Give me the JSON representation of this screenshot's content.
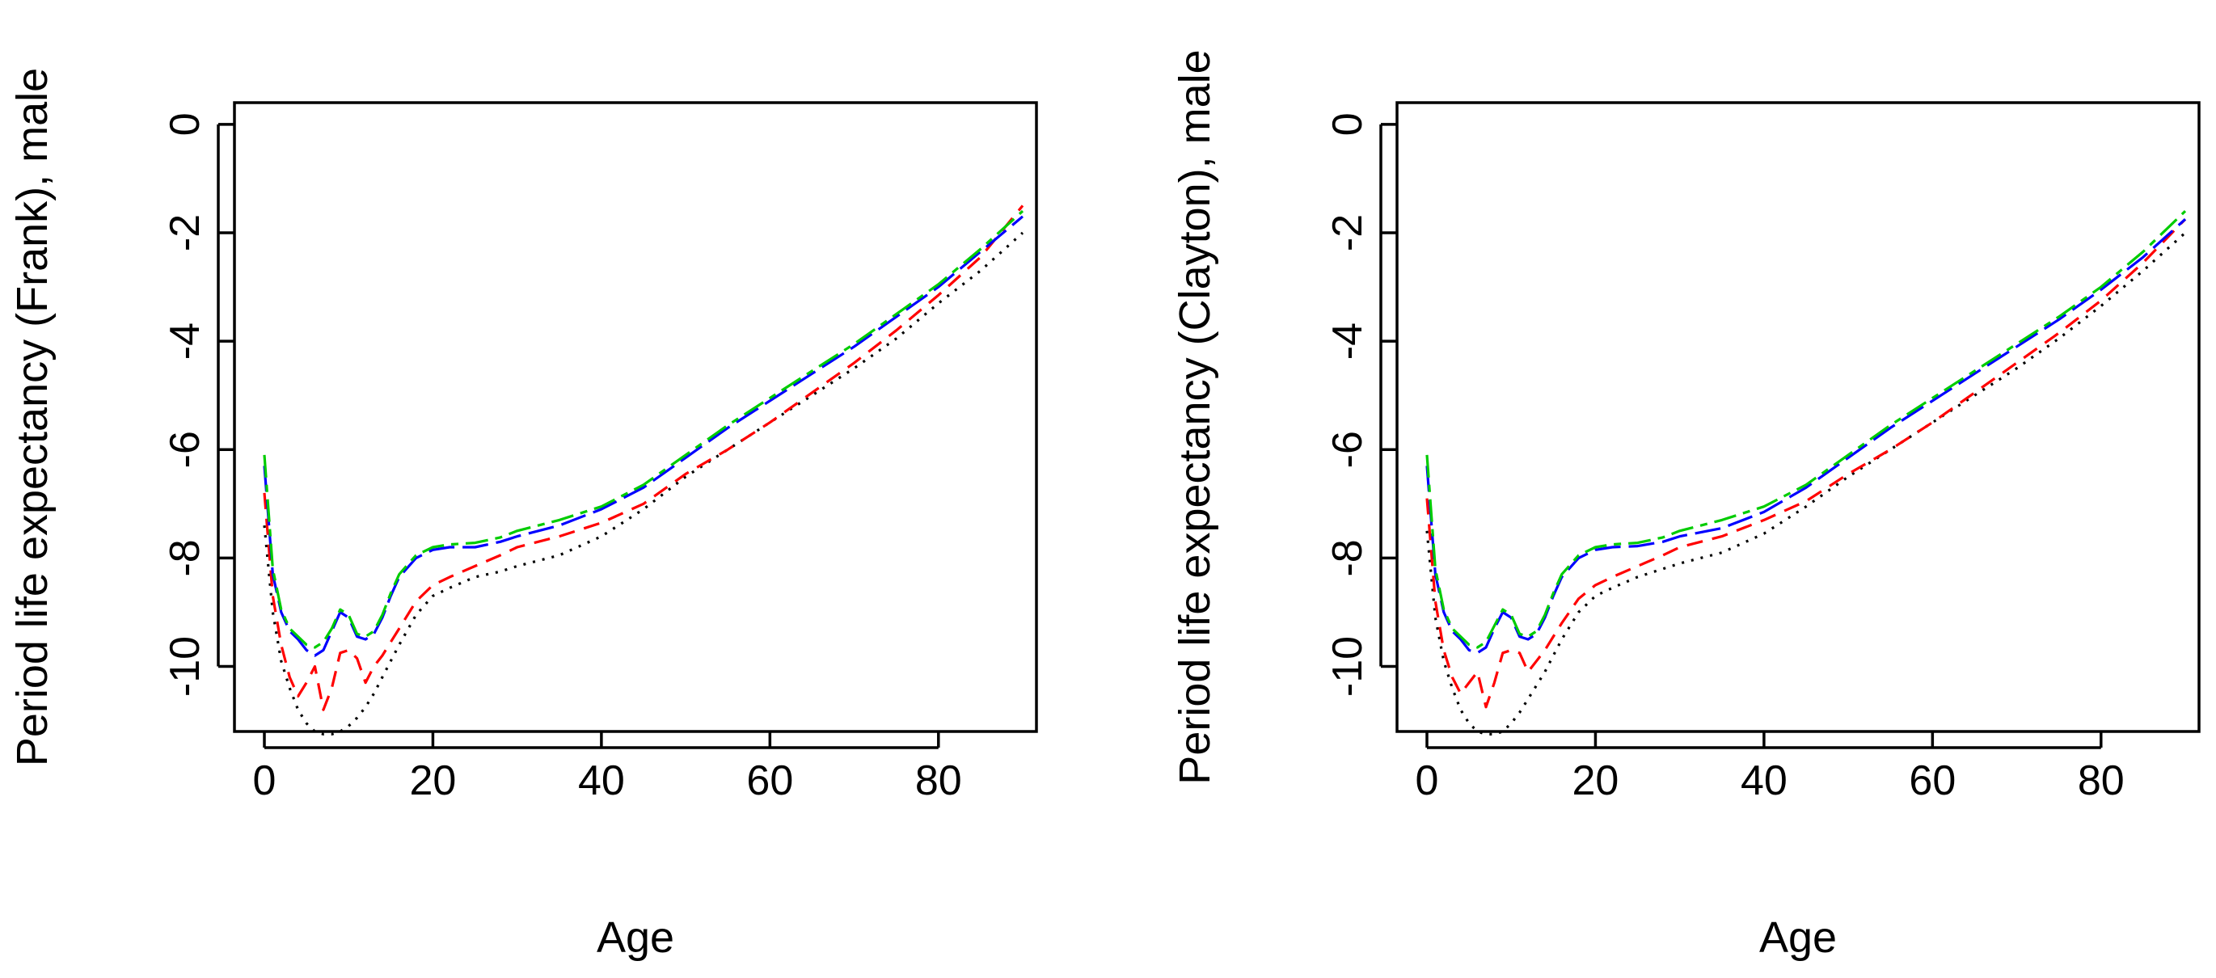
{
  "chart_data": [
    {
      "type": "line",
      "xlabel": "Age",
      "ylabel": "Period life expectancy (Frank), male",
      "xlim": [
        0,
        90
      ],
      "ylim": [
        -11.2,
        0.4
      ],
      "xticks": [
        "0",
        "20",
        "40",
        "60",
        "80"
      ],
      "yticks": [
        "0",
        "-2",
        "-4",
        "-6",
        "-8",
        "-10"
      ],
      "x": [
        0,
        1,
        2,
        3,
        4,
        5,
        6,
        7,
        8,
        9,
        10,
        11,
        12,
        13,
        14,
        15,
        16,
        18,
        20,
        22,
        25,
        28,
        30,
        35,
        40,
        45,
        50,
        55,
        60,
        65,
        70,
        75,
        80,
        85,
        90
      ],
      "series": [
        {
          "name": "black dotted",
          "color": "#000000",
          "dash": "dotted",
          "values": [
            -7.4,
            -9.0,
            -9.9,
            -10.4,
            -10.8,
            -11.05,
            -11.2,
            -11.25,
            -11.25,
            -11.2,
            -11.1,
            -10.95,
            -10.75,
            -10.5,
            -10.2,
            -9.9,
            -9.6,
            -9.05,
            -8.7,
            -8.55,
            -8.35,
            -8.25,
            -8.15,
            -7.95,
            -7.6,
            -7.1,
            -6.5,
            -6.0,
            -5.5,
            -5.0,
            -4.5,
            -3.95,
            -3.3,
            -2.7,
            -2.0
          ]
        },
        {
          "name": "red dashed",
          "color": "#ff0000",
          "dash": "dashed",
          "values": [
            -6.8,
            -8.7,
            -9.6,
            -10.2,
            -10.55,
            -10.3,
            -10.0,
            -10.8,
            -10.4,
            -9.75,
            -9.7,
            -9.85,
            -10.3,
            -10.0,
            -9.8,
            -9.55,
            -9.3,
            -8.8,
            -8.5,
            -8.35,
            -8.15,
            -7.95,
            -7.8,
            -7.6,
            -7.35,
            -7.0,
            -6.45,
            -6.0,
            -5.5,
            -4.95,
            -4.4,
            -3.8,
            -3.15,
            -2.45,
            -1.5
          ]
        },
        {
          "name": "blue long-dashed",
          "color": "#0000ff",
          "dash": "long",
          "values": [
            -6.3,
            -8.3,
            -9.0,
            -9.35,
            -9.5,
            -9.7,
            -9.8,
            -9.7,
            -9.35,
            -9.0,
            -9.1,
            -9.45,
            -9.5,
            -9.4,
            -9.1,
            -8.7,
            -8.35,
            -8.0,
            -7.85,
            -7.8,
            -7.8,
            -7.7,
            -7.6,
            -7.4,
            -7.1,
            -6.7,
            -6.15,
            -5.6,
            -5.1,
            -4.6,
            -4.1,
            -3.55,
            -3.0,
            -2.35,
            -1.7
          ]
        },
        {
          "name": "green two-dash",
          "color": "#00cc00",
          "dash": "twodash",
          "values": [
            -6.1,
            -8.2,
            -8.95,
            -9.3,
            -9.45,
            -9.6,
            -9.65,
            -9.55,
            -9.3,
            -8.95,
            -9.05,
            -9.4,
            -9.45,
            -9.35,
            -9.05,
            -8.65,
            -8.3,
            -7.95,
            -7.8,
            -7.75,
            -7.72,
            -7.62,
            -7.5,
            -7.3,
            -7.05,
            -6.65,
            -6.1,
            -5.55,
            -5.05,
            -4.55,
            -4.05,
            -3.5,
            -2.95,
            -2.3,
            -1.6
          ]
        }
      ]
    },
    {
      "type": "line",
      "xlabel": "Age",
      "ylabel": "Period life expectancy (Clayton), male",
      "xlim": [
        0,
        90
      ],
      "ylim": [
        -11.2,
        0.4
      ],
      "xticks": [
        "0",
        "20",
        "40",
        "60",
        "80"
      ],
      "yticks": [
        "0",
        "-2",
        "-4",
        "-6",
        "-8",
        "-10"
      ],
      "x": [
        0,
        1,
        2,
        3,
        4,
        5,
        6,
        7,
        8,
        9,
        10,
        11,
        12,
        13,
        14,
        15,
        16,
        18,
        20,
        22,
        25,
        28,
        30,
        35,
        40,
        45,
        50,
        55,
        60,
        65,
        70,
        75,
        80,
        85,
        90
      ],
      "series": [
        {
          "name": "black dotted",
          "color": "#000000",
          "dash": "dotted",
          "values": [
            -7.5,
            -9.1,
            -9.9,
            -10.4,
            -10.8,
            -11.05,
            -11.2,
            -11.25,
            -11.25,
            -11.2,
            -11.05,
            -10.85,
            -10.6,
            -10.35,
            -10.1,
            -9.8,
            -9.5,
            -9.0,
            -8.7,
            -8.55,
            -8.35,
            -8.2,
            -8.1,
            -7.9,
            -7.55,
            -7.05,
            -6.5,
            -6.0,
            -5.5,
            -5.0,
            -4.5,
            -3.95,
            -3.35,
            -2.7,
            -2.0
          ]
        },
        {
          "name": "red dashed",
          "color": "#ff0000",
          "dash": "dashed",
          "values": [
            -6.9,
            -8.8,
            -9.7,
            -10.2,
            -10.5,
            -10.3,
            -10.1,
            -10.75,
            -10.3,
            -9.75,
            -9.7,
            -9.75,
            -10.1,
            -9.9,
            -9.7,
            -9.45,
            -9.2,
            -8.75,
            -8.5,
            -8.35,
            -8.15,
            -7.95,
            -7.8,
            -7.6,
            -7.3,
            -6.95,
            -6.45,
            -6.0,
            -5.5,
            -4.95,
            -4.4,
            -3.85,
            -3.25,
            -2.55,
            -1.75
          ]
        },
        {
          "name": "blue long-dashed",
          "color": "#0000ff",
          "dash": "long",
          "values": [
            -6.3,
            -8.3,
            -9.0,
            -9.35,
            -9.5,
            -9.7,
            -9.75,
            -9.65,
            -9.3,
            -9.0,
            -9.1,
            -9.45,
            -9.5,
            -9.4,
            -9.1,
            -8.7,
            -8.35,
            -8.0,
            -7.85,
            -7.8,
            -7.78,
            -7.7,
            -7.6,
            -7.45,
            -7.15,
            -6.7,
            -6.15,
            -5.6,
            -5.1,
            -4.6,
            -4.1,
            -3.6,
            -3.05,
            -2.45,
            -1.75
          ]
        },
        {
          "name": "green two-dash",
          "color": "#00cc00",
          "dash": "twodash",
          "values": [
            -6.1,
            -8.2,
            -8.95,
            -9.3,
            -9.45,
            -9.6,
            -9.65,
            -9.55,
            -9.25,
            -8.95,
            -9.05,
            -9.4,
            -9.45,
            -9.35,
            -9.05,
            -8.65,
            -8.3,
            -7.95,
            -7.8,
            -7.75,
            -7.72,
            -7.62,
            -7.5,
            -7.3,
            -7.05,
            -6.65,
            -6.1,
            -5.55,
            -5.05,
            -4.55,
            -4.05,
            -3.55,
            -3.0,
            -2.35,
            -1.6
          ]
        }
      ]
    }
  ]
}
